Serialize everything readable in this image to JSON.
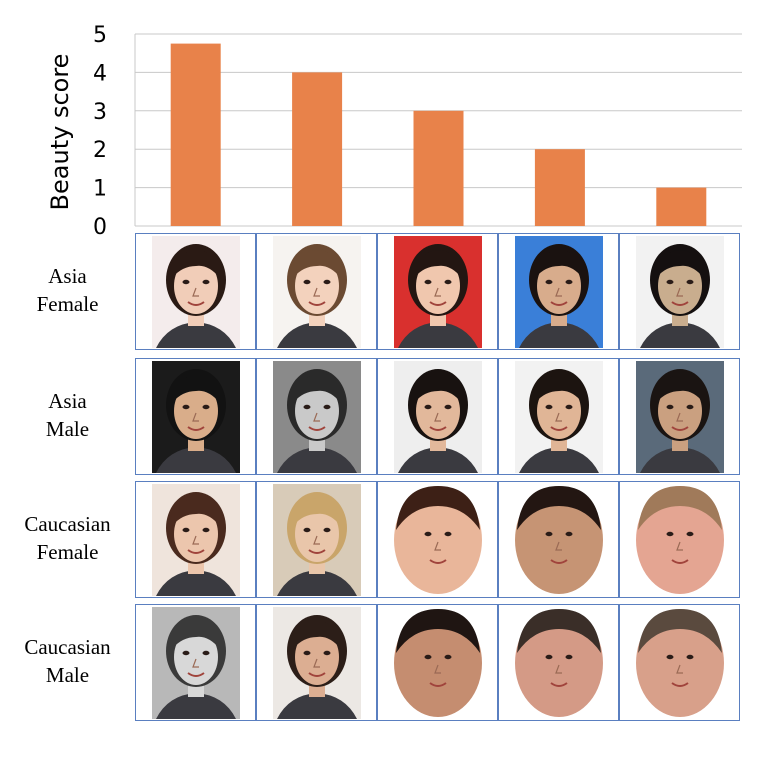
{
  "chart_data": {
    "type": "bar",
    "categories": [
      "",
      "",
      "",
      "",
      ""
    ],
    "values": [
      4.75,
      4,
      3,
      2,
      1
    ],
    "ylabel": "Beauty score",
    "ylim": [
      0,
      5
    ],
    "yticks": [
      "0",
      "1",
      "2",
      "3",
      "4",
      "5"
    ],
    "grid": true,
    "bar_color": "#e8824a"
  },
  "rows": [
    {
      "label_line1": "Asia",
      "label_line2": "Female",
      "faces": [
        {
          "bg": "#f4ecec",
          "skin": "#f1cdb8",
          "hair": "#2a1a14",
          "shape": "rect"
        },
        {
          "bg": "#f6f3f0",
          "skin": "#f3d2bd",
          "hair": "#6b4a32",
          "shape": "rect"
        },
        {
          "bg": "#d9302e",
          "skin": "#f0c7ae",
          "hair": "#231612",
          "shape": "rect"
        },
        {
          "bg": "#3a7fd8",
          "skin": "#d8ac8c",
          "hair": "#1a1210",
          "shape": "rect"
        },
        {
          "bg": "#f2f2f2",
          "skin": "#c9ad8e",
          "hair": "#151010",
          "shape": "rect"
        }
      ]
    },
    {
      "label_line1": "Asia",
      "label_line2": "Male",
      "faces": [
        {
          "bg": "#1b1b1b",
          "skin": "#d9ad8a",
          "hair": "#121212",
          "shape": "rect"
        },
        {
          "bg": "#8a8a8a",
          "skin": "#c9c9c9",
          "hair": "#2a2a2a",
          "shape": "rect"
        },
        {
          "bg": "#eeeeee",
          "skin": "#e2b89b",
          "hair": "#181210",
          "shape": "rect"
        },
        {
          "bg": "#f2f2f2",
          "skin": "#e0b596",
          "hair": "#1c1410",
          "shape": "rect"
        },
        {
          "bg": "#5a6a7a",
          "skin": "#caa080",
          "hair": "#1a1412",
          "shape": "rect"
        }
      ]
    },
    {
      "label_line1": "Caucasian",
      "label_line2": "Female",
      "faces": [
        {
          "bg": "#efe4dc",
          "skin": "#ecc6ad",
          "hair": "#4a2a1e",
          "shape": "rect"
        },
        {
          "bg": "#d8cbb8",
          "skin": "#e9c6aa",
          "hair": "#c9a56a",
          "shape": "rect"
        },
        {
          "bg": "#ffffff",
          "skin": "#e9b69a",
          "hair": "#3d2016",
          "shape": "oval"
        },
        {
          "bg": "#ffffff",
          "skin": "#c69474",
          "hair": "#231612",
          "shape": "oval"
        },
        {
          "bg": "#ffffff",
          "skin": "#e4a592",
          "hair": "#a07a5a",
          "shape": "oval"
        }
      ]
    },
    {
      "label_line1": "Caucasian",
      "label_line2": "Male",
      "faces": [
        {
          "bg": "#b8b8b8",
          "skin": "#d8d8d8",
          "hair": "#3a3a3a",
          "shape": "rect"
        },
        {
          "bg": "#ece8e4",
          "skin": "#dcae92",
          "hair": "#2c1e18",
          "shape": "rect"
        },
        {
          "bg": "#ffffff",
          "skin": "#c58d70",
          "hair": "#1f1512",
          "shape": "oval"
        },
        {
          "bg": "#ffffff",
          "skin": "#d49a86",
          "hair": "#3a2e28",
          "shape": "oval"
        },
        {
          "bg": "#ffffff",
          "skin": "#d8a08a",
          "hair": "#5a4a3e",
          "shape": "oval"
        }
      ]
    }
  ]
}
